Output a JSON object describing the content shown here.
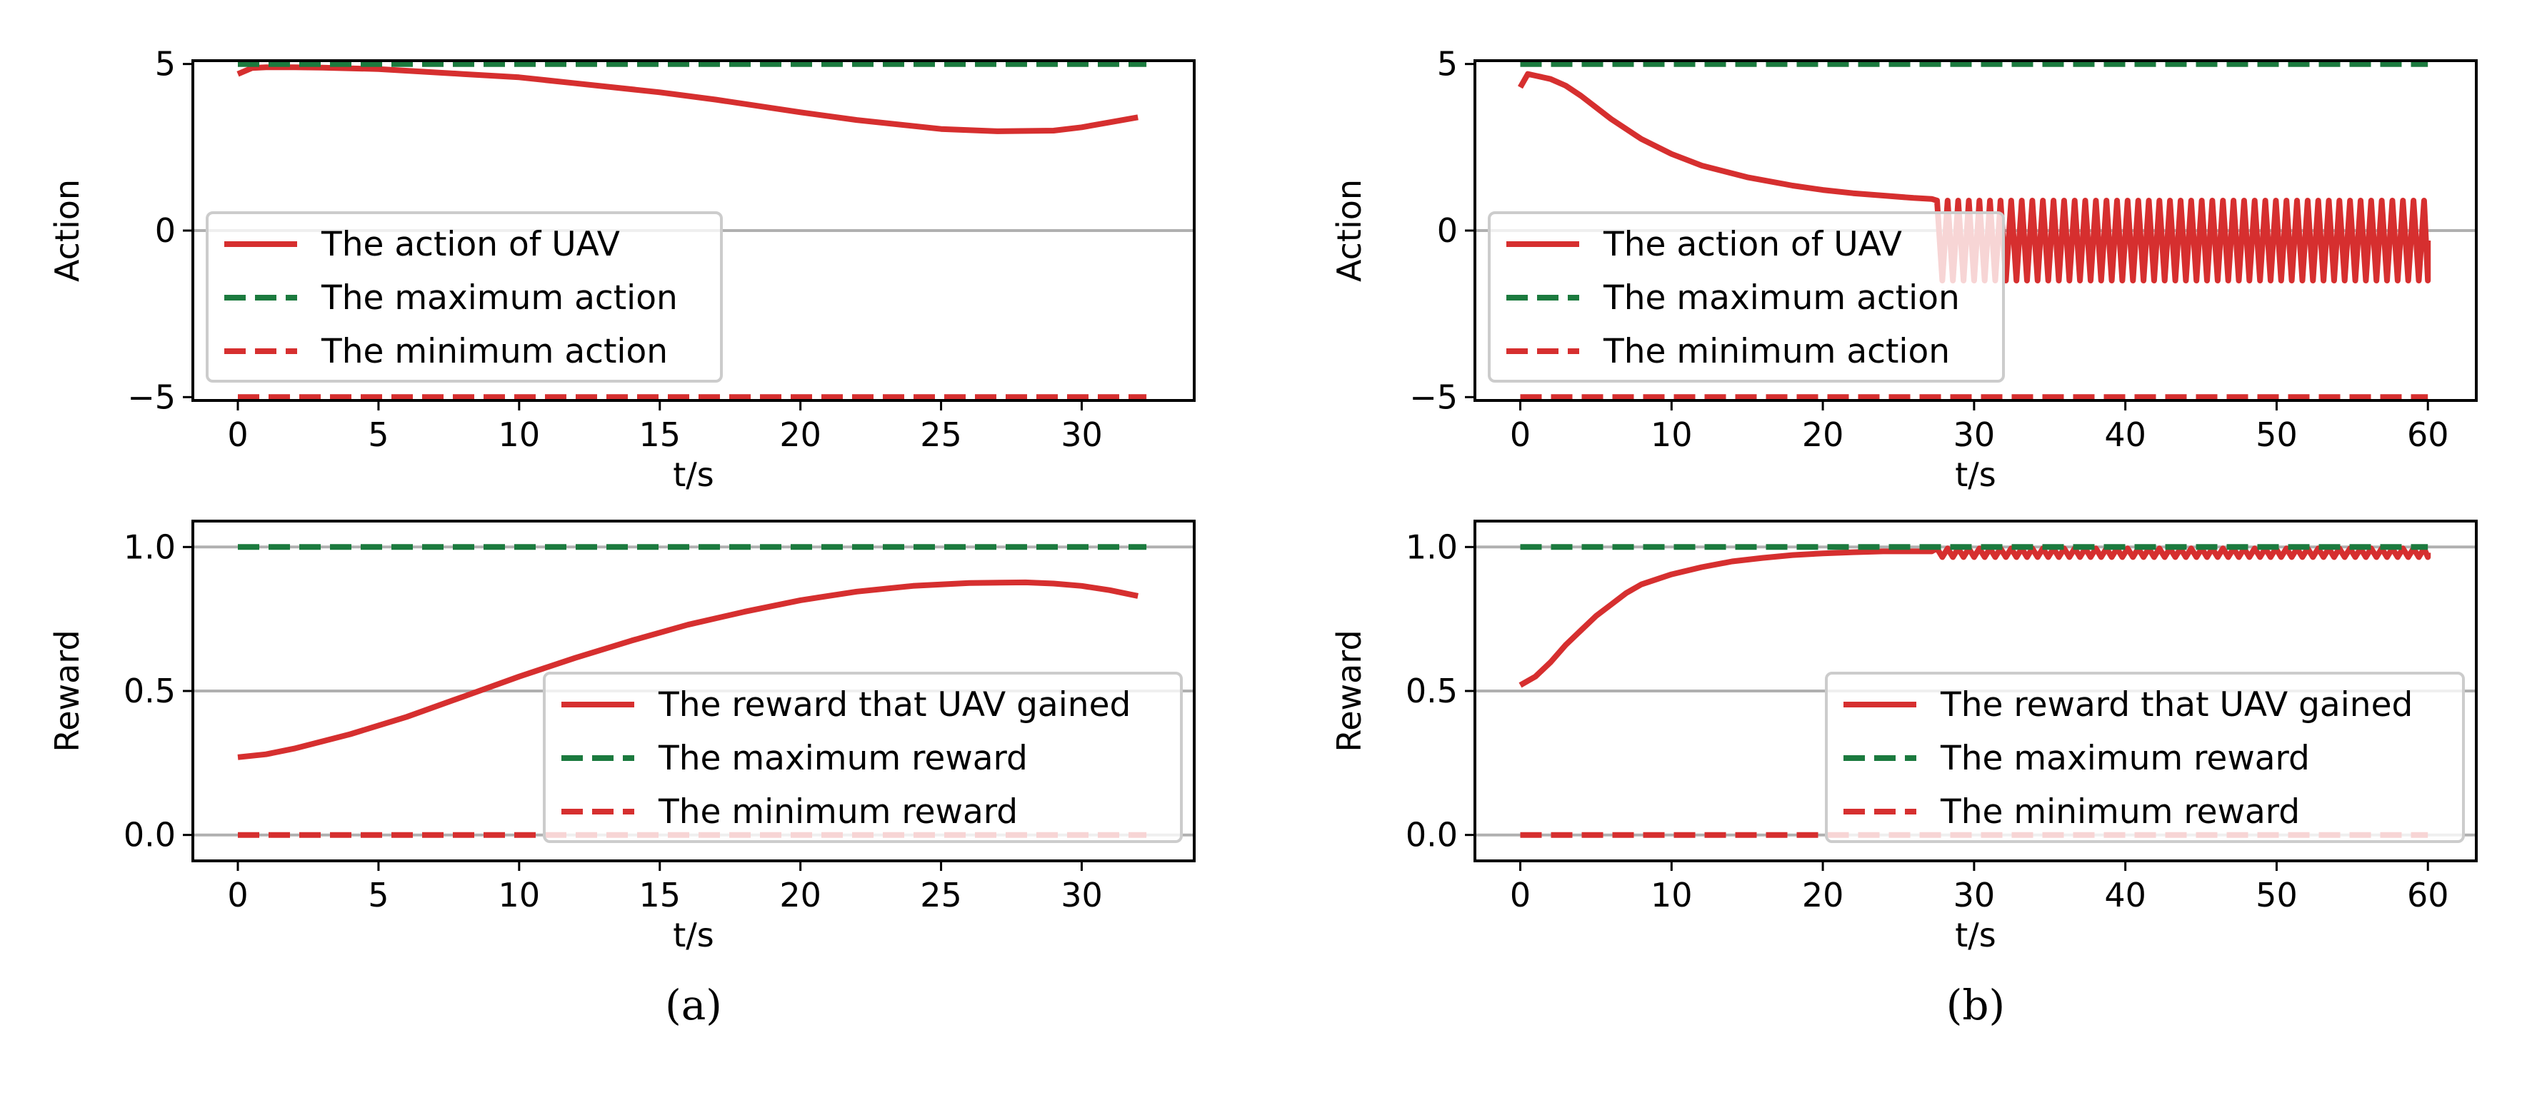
{
  "colors": {
    "action": "#d62f2f",
    "max": "#1b7a3e",
    "min": "#d62f2f",
    "grid": "#b0b0b0"
  },
  "chart_data": [
    {
      "id": "a-action",
      "type": "line",
      "caption": "(a)",
      "show_caption": false,
      "xlabel": "t/s",
      "ylabel": "Action",
      "xlim": [
        -1.6,
        34
      ],
      "ylim": [
        -5.1,
        5.1
      ],
      "xticks": [
        0,
        5,
        10,
        15,
        20,
        25,
        30
      ],
      "yticks": [
        -5,
        0,
        5
      ],
      "ytick_labels": [
        "−5",
        "0",
        "5"
      ],
      "grid_y": [
        0
      ],
      "legend_loc": "center-left",
      "series": [
        {
          "name": "The action of UAV",
          "role": "action",
          "x": [
            0,
            0.5,
            1,
            2,
            3,
            5,
            8,
            10,
            12,
            15,
            17,
            20,
            22,
            25,
            27,
            29,
            30,
            31,
            32
          ],
          "y": [
            4.7,
            4.88,
            4.9,
            4.9,
            4.89,
            4.85,
            4.7,
            4.6,
            4.42,
            4.15,
            3.93,
            3.55,
            3.32,
            3.05,
            2.98,
            3.0,
            3.1,
            3.25,
            3.4
          ]
        },
        {
          "name": "The maximum action",
          "role": "max",
          "x": [
            0,
            32.3
          ],
          "y": [
            5,
            5
          ]
        },
        {
          "name": "The minimum action",
          "role": "min",
          "x": [
            0,
            32.3
          ],
          "y": [
            -5,
            -5
          ]
        }
      ]
    },
    {
      "id": "a-reward",
      "type": "line",
      "caption": "(a)",
      "show_caption": true,
      "xlabel": "t/s",
      "ylabel": "Reward",
      "xlim": [
        -1.6,
        34
      ],
      "ylim": [
        -0.09,
        1.09
      ],
      "xticks": [
        0,
        5,
        10,
        15,
        20,
        25,
        30
      ],
      "yticks": [
        0.0,
        0.5,
        1.0
      ],
      "ytick_labels": [
        "0.0",
        "0.5",
        "1.0"
      ],
      "grid_y": [
        0.0,
        0.5,
        1.0
      ],
      "legend_loc": "lower-right",
      "series": [
        {
          "name": "The reward that UAV gained",
          "role": "action",
          "x": [
            0,
            1,
            2,
            4,
            6,
            8,
            10,
            12,
            14,
            16,
            18,
            20,
            22,
            24,
            26,
            28,
            29,
            30,
            31,
            32
          ],
          "y": [
            0.27,
            0.28,
            0.3,
            0.35,
            0.41,
            0.48,
            0.55,
            0.615,
            0.675,
            0.73,
            0.775,
            0.815,
            0.845,
            0.865,
            0.875,
            0.877,
            0.873,
            0.865,
            0.85,
            0.83
          ]
        },
        {
          "name": "The maximum reward",
          "role": "max",
          "x": [
            0,
            32.3
          ],
          "y": [
            1,
            1
          ]
        },
        {
          "name": "The minimum reward",
          "role": "min",
          "x": [
            0,
            32.3
          ],
          "y": [
            0,
            0
          ]
        }
      ]
    },
    {
      "id": "b-action",
      "type": "line",
      "caption": "(b)",
      "show_caption": false,
      "xlabel": "t/s",
      "ylabel": "Action",
      "xlim": [
        -3,
        63.2
      ],
      "ylim": [
        -5.1,
        5.1
      ],
      "xticks": [
        0,
        10,
        20,
        30,
        40,
        50,
        60
      ],
      "yticks": [
        -5,
        0,
        5
      ],
      "ytick_labels": [
        "−5",
        "0",
        "5"
      ],
      "grid_y": [
        0
      ],
      "legend_loc": "center-left",
      "oscillation": {
        "start": 27.2,
        "end": 60,
        "period": 1.4,
        "high": 0.9,
        "low": -1.5
      },
      "series": [
        {
          "name": "The action of UAV",
          "role": "action",
          "x": [
            0,
            0.5,
            1,
            2,
            3,
            4,
            5,
            6,
            8,
            10,
            12,
            15,
            18,
            20,
            22,
            24,
            26,
            27.2
          ],
          "y": [
            4.3,
            4.7,
            4.65,
            4.55,
            4.35,
            4.05,
            3.7,
            3.35,
            2.75,
            2.3,
            1.95,
            1.6,
            1.35,
            1.22,
            1.12,
            1.05,
            0.98,
            0.95
          ]
        },
        {
          "name": "The maximum action",
          "role": "max",
          "x": [
            0,
            60
          ],
          "y": [
            5,
            5
          ]
        },
        {
          "name": "The minimum action",
          "role": "min",
          "x": [
            0,
            60
          ],
          "y": [
            -5,
            -5
          ]
        }
      ]
    },
    {
      "id": "b-reward",
      "type": "line",
      "caption": "(b)",
      "show_caption": true,
      "xlabel": "t/s",
      "ylabel": "Reward",
      "xlim": [
        -3,
        63.2
      ],
      "ylim": [
        -0.09,
        1.09
      ],
      "xticks": [
        0,
        10,
        20,
        30,
        40,
        50,
        60
      ],
      "yticks": [
        0.0,
        0.5,
        1.0
      ],
      "ytick_labels": [
        "0.0",
        "0.5",
        "1.0"
      ],
      "grid_y": [
        0.0,
        0.5,
        1.0
      ],
      "legend_loc": "lower-right",
      "oscillation": {
        "start": 27.2,
        "end": 60,
        "period": 1.4,
        "high": 0.995,
        "low": 0.965
      },
      "series": [
        {
          "name": "The reward that UAV gained",
          "role": "action",
          "x": [
            0,
            1,
            2,
            3,
            4,
            5,
            6,
            7,
            8,
            10,
            12,
            14,
            16,
            18,
            20,
            22,
            24,
            27.2
          ],
          "y": [
            0.52,
            0.55,
            0.6,
            0.66,
            0.71,
            0.76,
            0.8,
            0.84,
            0.87,
            0.905,
            0.93,
            0.95,
            0.962,
            0.972,
            0.978,
            0.982,
            0.985,
            0.985
          ]
        },
        {
          "name": "The maximum reward",
          "role": "max",
          "x": [
            0,
            60
          ],
          "y": [
            1,
            1
          ]
        },
        {
          "name": "The minimum reward",
          "role": "min",
          "x": [
            0,
            60
          ],
          "y": [
            0,
            0
          ]
        }
      ]
    }
  ]
}
